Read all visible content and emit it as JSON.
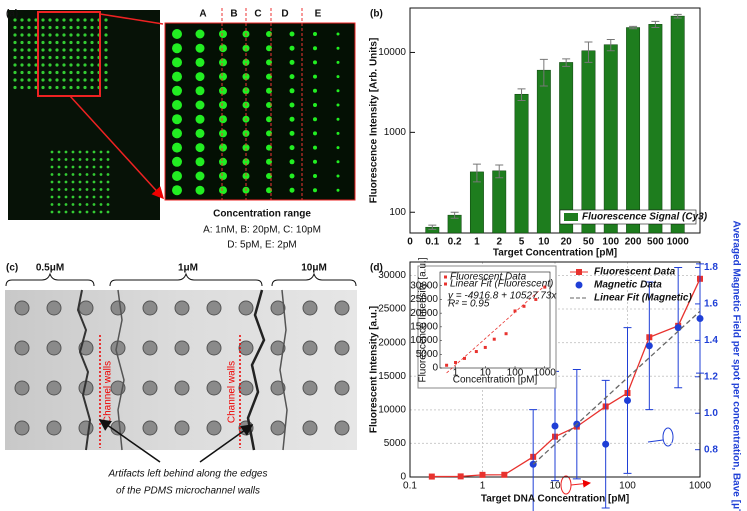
{
  "panels": {
    "a": {
      "label": "(a)",
      "columns": [
        "A",
        "B",
        "C",
        "D",
        "E"
      ],
      "caption_title": "Concentration range",
      "caption_lines": [
        "A: 1nM, B: 20pM, C: 10pM",
        "D: 5pM, E: 2pM"
      ]
    },
    "c": {
      "label": "(c)",
      "regions": [
        "0.5μM",
        "1μM",
        "10μM"
      ],
      "wall_labels": [
        "Channel walls",
        "Channel walls"
      ],
      "note_lines": [
        "Artifacts left behind along the edges",
        "of the PDMS microchannel walls"
      ]
    }
  },
  "chart_data": [
    {
      "type": "bar",
      "panel_label": "(b)",
      "x_label": "Target Concentration [pM]",
      "y_label": "Fluorescence Intensity [Arb. Units]",
      "categories": [
        "0",
        "0.1",
        "0.2",
        "1",
        "2",
        "5",
        "10",
        "20",
        "50",
        "100",
        "200",
        "500",
        "1000"
      ],
      "series": [
        {
          "name": "Fluorescence Signal (Cy3)",
          "color": "#1e7d1e",
          "values": [
            null,
            65,
            92,
            320,
            330,
            3000,
            6000,
            7500,
            10500,
            12500,
            20500,
            22500,
            28500
          ],
          "errors": [
            null,
            4,
            8,
            80,
            60,
            500,
            2200,
            800,
            3000,
            2000,
            700,
            2000,
            1500
          ]
        }
      ],
      "log_y": true,
      "ylim": [
        55,
        36000
      ],
      "yticks": [
        100,
        1000,
        10000
      ],
      "legend": "bottom-right"
    },
    {
      "type": "line",
      "panel_label": "(d)",
      "x_label": "Target DNA Concentration [pM]",
      "y_label": "Fluorescent Intensity [a.u.]",
      "y2_label": "Averaged Magnetic Field per spot per concentration, Bave [μT]",
      "log_x": true,
      "xlim": [
        0.1,
        1000
      ],
      "xticks": [
        0.1,
        1,
        10,
        100,
        1000
      ],
      "ylim": [
        0,
        32000
      ],
      "yticks": [
        0,
        5000,
        10000,
        15000,
        20000,
        25000,
        30000
      ],
      "y2lim": [
        0.65,
        1.83
      ],
      "y2ticks": [
        0.8,
        {
          "value": 1,
          "label": "1.0"
        },
        1.2,
        1.4,
        1.6,
        1.8
      ],
      "grid": true,
      "legend": "top-right",
      "series": [
        {
          "name": "Fluorescent Data",
          "color": "#e8322e",
          "marker": "square",
          "line": "solid",
          "x": [
            0.2,
            0.5,
            1,
            2,
            5,
            10,
            20,
            50,
            100,
            200,
            500,
            1000
          ],
          "values": [
            65,
            92,
            320,
            330,
            3000,
            6000,
            7500,
            10500,
            12500,
            20800,
            22500,
            29500
          ]
        },
        {
          "name": "Magnetic Data",
          "color": "#1f3fd6",
          "marker": "circle",
          "axis": "y2",
          "x": [
            5,
            10,
            20,
            50,
            100,
            200,
            500,
            1000
          ],
          "values": [
            0.72,
            0.93,
            0.94,
            0.83,
            1.07,
            1.37,
            1.47,
            1.52
          ],
          "errors": [
            0.3,
            0.3,
            0.3,
            0.35,
            0.4,
            0.35,
            0.33,
            0.3
          ]
        },
        {
          "name": "Linear Fit (Magnetic)",
          "color": "#666666",
          "line": "dashed",
          "axis": "y2",
          "x": [
            5,
            1000
          ],
          "values": [
            0.72,
            1.56
          ]
        }
      ]
    },
    {
      "type": "scatter",
      "x_label": "Concentration [pM]",
      "y_label": "Fluorescence Intensity [a.u.]",
      "equation": "y = -4916.8 + 10527.73x",
      "r_squared": "R² = 0.95",
      "log_x": true,
      "xlim": [
        0.3,
        1500
      ],
      "xticks": [
        1,
        10,
        100,
        1000
      ],
      "ylim": [
        0,
        35000
      ],
      "yticks": [
        0,
        5000,
        10000,
        15000,
        20000,
        25000,
        30000
      ],
      "series": [
        {
          "name": "Fluorescent Data",
          "color": "#e8322e",
          "marker": "square",
          "x": [
            0.5,
            1,
            2,
            5,
            10,
            20,
            50,
            100,
            200,
            500,
            1000
          ],
          "values": [
            1000,
            2000,
            3500,
            6000,
            7500,
            10500,
            12500,
            20800,
            22500,
            25000,
            29500
          ]
        },
        {
          "name": "Linear Fit (Fluorescent)",
          "color": "#e8322e",
          "line": "dashed",
          "x": [
            0.5,
            1000
          ],
          "values": [
            -1800,
            30000
          ]
        }
      ]
    }
  ]
}
